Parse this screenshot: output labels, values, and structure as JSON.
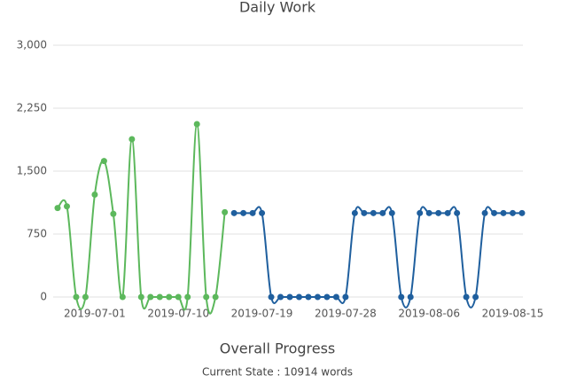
{
  "chart_data": {
    "type": "line",
    "title": "Daily Work",
    "x": [
      "2019-06-27",
      "2019-06-28",
      "2019-06-29",
      "2019-06-30",
      "2019-07-01",
      "2019-07-02",
      "2019-07-03",
      "2019-07-04",
      "2019-07-05",
      "2019-07-06",
      "2019-07-07",
      "2019-07-08",
      "2019-07-09",
      "2019-07-10",
      "2019-07-11",
      "2019-07-12",
      "2019-07-13",
      "2019-07-14",
      "2019-07-15",
      "2019-07-16",
      "2019-07-17",
      "2019-07-18",
      "2019-07-19",
      "2019-07-20",
      "2019-07-21",
      "2019-07-22",
      "2019-07-23",
      "2019-07-24",
      "2019-07-25",
      "2019-07-26",
      "2019-07-27",
      "2019-07-28",
      "2019-07-29",
      "2019-07-30",
      "2019-07-31",
      "2019-08-01",
      "2019-08-02",
      "2019-08-03",
      "2019-08-04",
      "2019-08-05",
      "2019-08-06",
      "2019-08-07",
      "2019-08-08",
      "2019-08-09",
      "2019-08-10",
      "2019-08-11",
      "2019-08-12",
      "2019-08-13",
      "2019-08-14",
      "2019-08-15",
      "2019-08-16"
    ],
    "series": [
      {
        "color": "#5cb85c",
        "values": [
          1060,
          1080,
          0,
          0,
          1220,
          1620,
          990,
          0,
          1880,
          0,
          0,
          0,
          0,
          0,
          0,
          2060,
          0,
          0,
          1010,
          null,
          null,
          null,
          null,
          null,
          null,
          null,
          null,
          null,
          null,
          null,
          null,
          null,
          null,
          null,
          null,
          null,
          null,
          null,
          null,
          null,
          null,
          null,
          null,
          null,
          null,
          null,
          null,
          null,
          null,
          null,
          null
        ]
      },
      {
        "color": "#1f5f9e",
        "values": [
          null,
          null,
          null,
          null,
          null,
          null,
          null,
          null,
          null,
          null,
          null,
          null,
          null,
          null,
          null,
          null,
          null,
          null,
          null,
          1000,
          1000,
          1000,
          1000,
          0,
          0,
          0,
          0,
          0,
          0,
          0,
          0,
          0,
          1000,
          1000,
          1000,
          1000,
          1000,
          0,
          0,
          1000,
          1000,
          1000,
          1000,
          1000,
          0,
          0,
          1000,
          1000,
          1000,
          1000,
          1000
        ]
      }
    ],
    "xlim": [
      "2019-06-27",
      "2019-08-16"
    ],
    "xticks": [
      "2019-07-01",
      "2019-07-10",
      "2019-07-19",
      "2019-07-28",
      "2019-08-06",
      "2019-08-15"
    ],
    "ylim": [
      0,
      3000
    ],
    "yticks": [
      0,
      750,
      {
        "value": 1500,
        "label": "1,500"
      },
      {
        "value": 2250,
        "label": "2,250"
      },
      {
        "value": 3000,
        "label": "3,000"
      }
    ],
    "grid": true
  },
  "footer": {
    "title": "Overall Progress",
    "status": "Current State : 10914 words"
  }
}
